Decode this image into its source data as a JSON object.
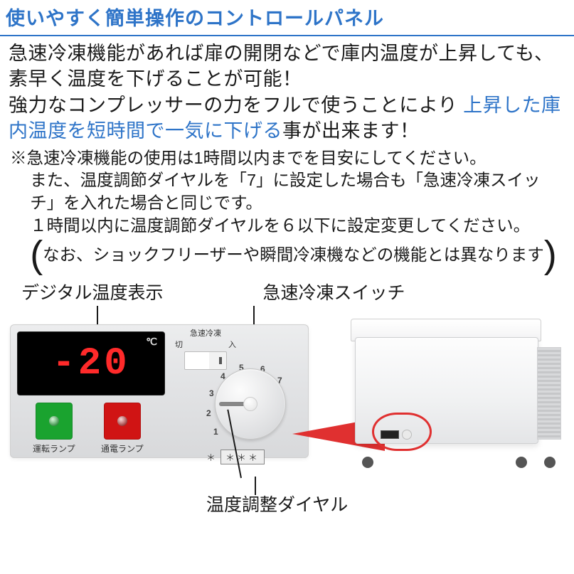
{
  "title": "使いやすく簡単操作のコントロールパネル",
  "body": {
    "line1": "急速冷凍機能があれば扉の開閉などで庫内温度が上昇しても、素早く温度を下げることが可能！",
    "line2": "強力なコンプレッサーの力をフルで使うことにより",
    "highlight": "上昇した庫内温度を短時間で一気に下げる",
    "line3_tail": "事が出来ます！"
  },
  "notes": {
    "n1": "※急速冷凍機能の使用は1時間以内までを目安にしてください。",
    "n2": "また、温度調節ダイヤルを「7」に設定した場合も「急速冷凍スイッチ」を入れた場合と同じです。",
    "n3": "１時間以内に温度調節ダイヤルを６以下に設定変更してください。",
    "paren": "なお、ショックフリーザーや瞬間冷凍機などの機能とは異なります"
  },
  "labels": {
    "digital": "デジタル温度表示",
    "quick_switch": "急速冷凍スイッチ",
    "dial": "温度調整ダイヤル"
  },
  "panel": {
    "display_value": "-20",
    "display_unit": "℃",
    "switch_title": "急速冷凍",
    "switch_off": "切",
    "switch_on": "入",
    "dial_numbers": [
      "1",
      "2",
      "3",
      "4",
      "5",
      "6",
      "7"
    ],
    "frost_symbol": "＊",
    "frost_box": "＊＊＊",
    "lamp_run": "運転ランプ",
    "lamp_power": "通電ランプ"
  },
  "colors": {
    "accent": "#2e74c8",
    "alert": "#e03030",
    "led": "#ff2a2a",
    "lamp_green": "#1aa32f",
    "lamp_red": "#d01414"
  }
}
